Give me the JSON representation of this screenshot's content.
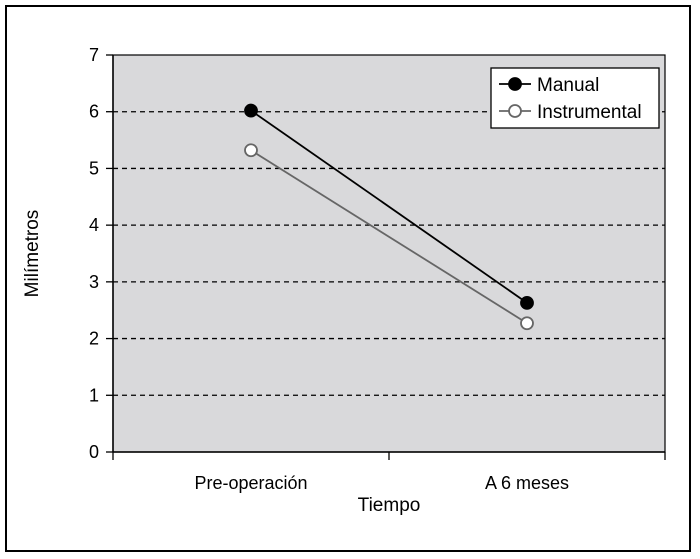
{
  "chart_data": {
    "type": "line",
    "title": "",
    "xlabel": "Tiempo",
    "ylabel": "Milímetros",
    "categories": [
      "Pre-operación",
      "A 6 meses"
    ],
    "ylim": [
      0,
      7
    ],
    "yticks": [
      0,
      1,
      2,
      3,
      4,
      5,
      6,
      7
    ],
    "grid": true,
    "legend_position": "top-right",
    "series": [
      {
        "name": "Manual",
        "values": [
          6.02,
          2.63
        ],
        "color": "#000000",
        "marker": "filled-circle"
      },
      {
        "name": "Instrumental",
        "values": [
          5.32,
          2.27
        ],
        "color": "#666666",
        "marker": "open-circle"
      }
    ],
    "colors": {
      "plot_background": "#d9d9db",
      "gridline": "#000000"
    }
  }
}
